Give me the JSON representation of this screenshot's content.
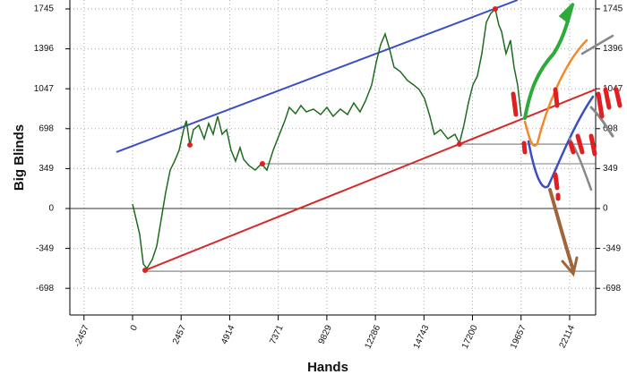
{
  "chart_data": {
    "type": "line",
    "x_label": "Hands",
    "y_label": "Big Blinds",
    "xlim": [
      -3172,
      23430
    ],
    "ylim": [
      -931,
      1823
    ],
    "xticks": [
      -2457,
      0,
      2457,
      4914,
      7371,
      9829,
      12286,
      14743,
      17200,
      19657,
      22114
    ],
    "yticks": [
      -698,
      -349,
      0,
      349,
      698,
      1047,
      1396,
      1745
    ],
    "grid": true,
    "x": [
      0,
      181,
      362,
      544,
      725,
      997,
      1223,
      1450,
      1676,
      1903,
      2130,
      2356,
      2583,
      2719,
      2900,
      3081,
      3353,
      3625,
      3851,
      4078,
      4304,
      4531,
      4758,
      4984,
      5211,
      5437,
      5618,
      5890,
      6207,
      6525,
      6797,
      7114,
      7431,
      7703,
      7929,
      8246,
      8518,
      8790,
      9153,
      9515,
      9832,
      10149,
      10512,
      10874,
      11192,
      11509,
      11781,
      12098,
      12324,
      12551,
      12778,
      13004,
      13231,
      13548,
      13910,
      14227,
      14499,
      14771,
      15043,
      15269,
      15586,
      15949,
      16312,
      16538,
      16765,
      16991,
      17218,
      17445,
      17671,
      17898,
      18124,
      18350,
      18532,
      18667,
      18894,
      19121,
      19302,
      19483,
      19664
    ],
    "series": [
      {
        "color": "#1e6b1e",
        "values": [
          39,
          -94,
          -227,
          -485,
          -524,
          -446,
          -329,
          -94,
          141,
          336,
          415,
          509,
          689,
          767,
          556,
          689,
          728,
          610,
          743,
          649,
          806,
          649,
          689,
          509,
          415,
          532,
          430,
          376,
          336,
          391,
          336,
          509,
          649,
          767,
          884,
          829,
          900,
          845,
          869,
          822,
          884,
          806,
          869,
          822,
          923,
          845,
          939,
          1080,
          1275,
          1432,
          1526,
          1393,
          1236,
          1197,
          1119,
          1080,
          1041,
          962,
          806,
          649,
          689,
          610,
          649,
          571,
          728,
          923,
          1080,
          1158,
          1354,
          1628,
          1706,
          1745,
          1604,
          1549,
          1354,
          1471,
          1236,
          1080,
          806
        ]
      }
    ],
    "lines": [
      {
        "color": "#3a4fc4",
        "x": [
          -816,
          19483
        ],
        "values": [
          493,
          1823
        ]
      },
      {
        "color": "#d42a2a",
        "x": [
          634,
          23426
        ],
        "values": [
          -540,
          1041
        ]
      },
      {
        "color": "#555555",
        "x": [
          634,
          23426
        ],
        "values": [
          -548,
          -548
        ]
      },
      {
        "color": "#555555",
        "x": [
          6570,
          23426
        ],
        "values": [
          391,
          391
        ]
      },
      {
        "color": "#555555",
        "x": [
          16538,
          23426
        ],
        "values": [
          563,
          563
        ]
      }
    ],
    "markers": {
      "color": "#e02020",
      "x": [
        634,
        2900,
        6570,
        16538,
        18350
      ],
      "values": [
        -540,
        556,
        391,
        563,
        1745
      ]
    }
  }
}
